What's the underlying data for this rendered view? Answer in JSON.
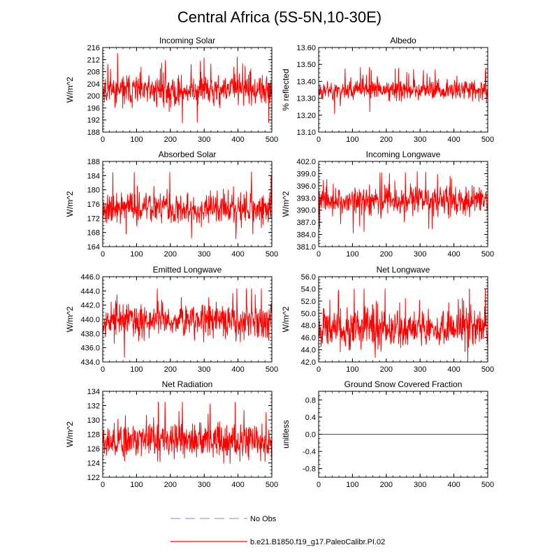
{
  "figure": {
    "title": "Central Africa (5S-5N,10-30E)"
  },
  "legend": [
    {
      "label": "No Obs",
      "color": "#9999ff",
      "style": "dashed"
    },
    {
      "label": "b.e21.B1850.f19_g17.PaleoCalibr.PI.02",
      "color": "#ff0000",
      "style": "solid"
    }
  ],
  "chart_data": [
    {
      "id": "incoming-solar",
      "type": "line",
      "title": "Incoming Solar",
      "ylabel": "W/m^2",
      "xlim": [
        0,
        500
      ],
      "xticks": [
        0,
        100,
        200,
        300,
        400,
        500
      ],
      "ylim": [
        188,
        216
      ],
      "yticks": [
        "216",
        "212",
        "208",
        "204",
        "200",
        "196",
        "192",
        "188"
      ],
      "series": [
        {
          "name": "b.e21.B1850.f19_g17.PaleoCalibr.PI.02",
          "color": "#ff0000",
          "n": 500,
          "mean": 201.8,
          "spread": 2.6,
          "min": 191,
          "max": 215,
          "seed": 11
        }
      ]
    },
    {
      "id": "albedo",
      "type": "line",
      "title": "Albedo",
      "ylabel": "% reflected",
      "xlim": [
        0,
        500
      ],
      "xticks": [
        0,
        100,
        200,
        300,
        400,
        500
      ],
      "ylim": [
        13.1,
        13.6
      ],
      "yticks": [
        "13.60",
        "13.50",
        "13.40",
        "13.30",
        "13.20",
        "13.10"
      ],
      "series": [
        {
          "name": "b.e21.B1850.f19_g17.PaleoCalibr.PI.02",
          "color": "#ff0000",
          "n": 500,
          "mean": 13.35,
          "spread": 0.03,
          "min": 13.19,
          "max": 13.51,
          "seed": 23
        }
      ]
    },
    {
      "id": "absorbed-solar",
      "type": "line",
      "title": "Absorbed Solar",
      "ylabel": "W/m^2",
      "xlim": [
        0,
        500
      ],
      "xticks": [
        0,
        100,
        200,
        300,
        400,
        500
      ],
      "ylim": [
        164,
        188
      ],
      "yticks": [
        "188",
        "184",
        "180",
        "176",
        "172",
        "168",
        "164"
      ],
      "series": [
        {
          "name": "b.e21.B1850.f19_g17.PaleoCalibr.PI.02",
          "color": "#ff0000",
          "n": 500,
          "mean": 174.8,
          "spread": 2.3,
          "min": 166,
          "max": 186.5,
          "seed": 37
        }
      ]
    },
    {
      "id": "incoming-longwave",
      "type": "line",
      "title": "Incoming Longwave",
      "ylabel": "W/m^2",
      "xlim": [
        0,
        500
      ],
      "xticks": [
        0,
        100,
        200,
        300,
        400,
        500
      ],
      "ylim": [
        381.0,
        402.0
      ],
      "yticks": [
        "402.0",
        "399.0",
        "396.0",
        "393.0",
        "390.0",
        "387.0",
        "384.0",
        "381.0"
      ],
      "series": [
        {
          "name": "b.e21.B1850.f19_g17.PaleoCalibr.PI.02",
          "color": "#ff0000",
          "n": 500,
          "mean": 392.3,
          "spread": 1.7,
          "min": 383.5,
          "max": 399.5,
          "seed": 41
        }
      ]
    },
    {
      "id": "emitted-longwave",
      "type": "line",
      "title": "Emitted Longwave",
      "ylabel": "W/m^2",
      "xlim": [
        0,
        500
      ],
      "xticks": [
        0,
        100,
        200,
        300,
        400,
        500
      ],
      "ylim": [
        434.0,
        446.0
      ],
      "yticks": [
        "446.0",
        "444.0",
        "442.0",
        "440.0",
        "438.0",
        "436.0",
        "434.0"
      ],
      "series": [
        {
          "name": "b.e21.B1850.f19_g17.PaleoCalibr.PI.02",
          "color": "#ff0000",
          "n": 500,
          "mean": 439.9,
          "spread": 1.2,
          "min": 434.6,
          "max": 444.3,
          "seed": 53
        }
      ]
    },
    {
      "id": "net-longwave",
      "type": "line",
      "title": "Net Longwave",
      "ylabel": "W/m^2",
      "xlim": [
        0,
        500
      ],
      "xticks": [
        0,
        100,
        200,
        300,
        400,
        500
      ],
      "ylim": [
        42.0,
        56.0
      ],
      "yticks": [
        "56.0",
        "54.0",
        "52.0",
        "50.0",
        "48.0",
        "46.0",
        "44.0",
        "42.0"
      ],
      "series": [
        {
          "name": "b.e21.B1850.f19_g17.PaleoCalibr.PI.02",
          "color": "#ff0000",
          "n": 500,
          "mean": 47.6,
          "spread": 1.6,
          "min": 42.3,
          "max": 54.0,
          "seed": 67
        }
      ]
    },
    {
      "id": "net-radiation",
      "type": "line",
      "title": "Net Radiation",
      "ylabel": "W/m^2",
      "xlim": [
        0,
        500
      ],
      "xticks": [
        0,
        100,
        200,
        300,
        400,
        500
      ],
      "ylim": [
        122,
        134
      ],
      "yticks": [
        "134",
        "132",
        "130",
        "128",
        "126",
        "124",
        "122"
      ],
      "series": [
        {
          "name": "b.e21.B1850.f19_g17.PaleoCalibr.PI.02",
          "color": "#ff0000",
          "n": 500,
          "mean": 127.2,
          "spread": 1.3,
          "min": 122.8,
          "max": 132.5,
          "seed": 79
        }
      ]
    },
    {
      "id": "ground-snow",
      "type": "line",
      "title": "Ground Snow Covered Fraction",
      "ylabel": "unitless",
      "xlim": [
        0,
        500
      ],
      "xticks": [
        0,
        100,
        200,
        300,
        400,
        500
      ],
      "ylim": [
        -1.0,
        1.0
      ],
      "yticks": [
        "0.8",
        "0.4",
        "0.0",
        "-0.4",
        "-0.8"
      ],
      "ytick_values": [
        0.8,
        0.4,
        0.0,
        -0.4,
        -0.8
      ],
      "series": [
        {
          "name": "b.e21.B1850.f19_g17.PaleoCalibr.PI.02",
          "color": "#ff0000",
          "n": 500,
          "constant": 0.0
        }
      ]
    }
  ]
}
